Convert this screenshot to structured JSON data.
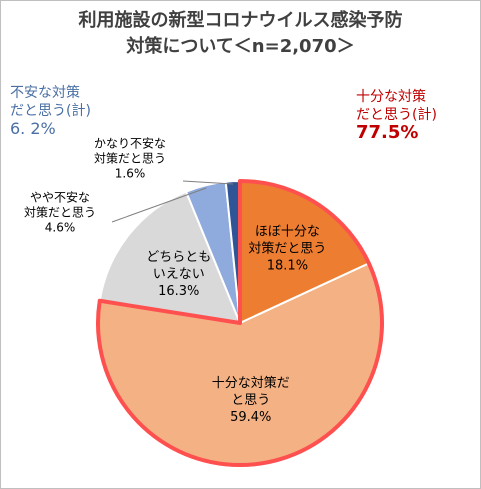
{
  "chart_data": {
    "type": "pie",
    "title_line1": "利用施設の新型コロナウイルス感染予防",
    "title_line2": "対策について＜n=2,070＞",
    "slices": [
      {
        "label_lines": [
          "ほぼ十分な",
          "対策だと思う"
        ],
        "value": 18.1,
        "value_label": "18.1%",
        "color": "#ed7d31"
      },
      {
        "label_lines": [
          "十分な対策だ",
          "と思う"
        ],
        "value": 59.4,
        "value_label": "59.4%",
        "color": "#f4b183"
      },
      {
        "label_lines": [
          "どちらとも",
          "いえない"
        ],
        "value": 16.3,
        "value_label": "16.3%",
        "color": "#d9d9d9"
      },
      {
        "label_lines": [
          "やや不安な",
          "対策だと思う"
        ],
        "value": 4.6,
        "value_label": "4.6%",
        "color": "#8faadc"
      },
      {
        "label_lines": [
          "かなり不安な",
          "対策だと思う"
        ],
        "value": 1.6,
        "value_label": "1.6%",
        "color": "#2f5597"
      }
    ],
    "groups": {
      "anxious": {
        "line1": "不安な対策",
        "line2": "だと思う(計)",
        "value": "6. 2%",
        "color": "#4a6fa5"
      },
      "sufficient": {
        "line1": "十分な対策",
        "line2": "だと思う(計)",
        "value": "77.5%",
        "color": "#c00000"
      }
    },
    "highlight_color": "#ff5050"
  }
}
